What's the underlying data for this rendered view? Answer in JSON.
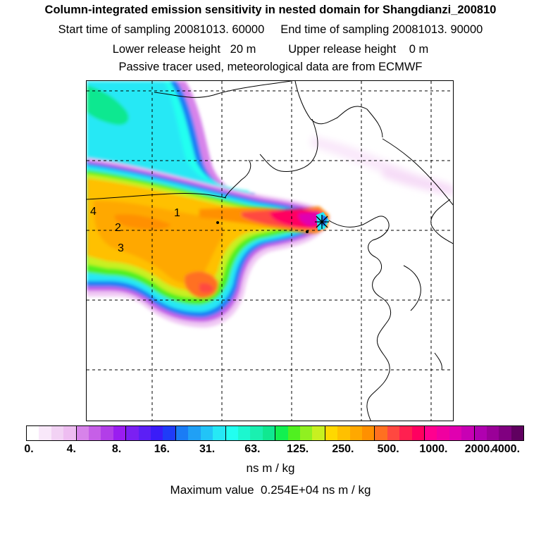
{
  "header": {
    "title": "Column-integrated emission sensitivity in nested domain for Shangdianzi_200810",
    "sampling_line": "Start time of sampling 20081013. 60000     End time of sampling 20081013. 90000",
    "release_line": "Lower release height   20 m          Upper release height    0 m",
    "tracer_line": "Passive tracer used, meteorological data are from ECMWF"
  },
  "map": {
    "site_marker": "asterisk-icon",
    "region_labels": [
      "1",
      "2",
      "3",
      "4"
    ]
  },
  "colorbar": {
    "tick_labels": [
      "0.",
      "4.",
      "8.",
      "16.",
      "31.",
      "63.",
      "125.",
      "250.",
      "500.",
      "1000.",
      "2000.",
      "4000."
    ],
    "colors": [
      "#ffffff",
      "#f9e8fa",
      "#f2d2f4",
      "#eebdf1",
      "#d783ea",
      "#c65fe7",
      "#b23ee8",
      "#9a1df0",
      "#7b20f2",
      "#5c1ff5",
      "#3a1cf8",
      "#1f3cf8",
      "#1a7cf5",
      "#20a0f5",
      "#22c4f7",
      "#26e8f5",
      "#22fff0",
      "#1cf7cf",
      "#1af0b0",
      "#10e890",
      "#12f050",
      "#50f020",
      "#90f020",
      "#c8f020",
      "#ffd800",
      "#ffc000",
      "#ffa800",
      "#ff9000",
      "#ff7020",
      "#ff4840",
      "#ff2050",
      "#ff0060",
      "#ff008f",
      "#f000a0",
      "#e000b0",
      "#c800b4",
      "#b000b0",
      "#9a0098",
      "#800080",
      "#600060"
    ]
  },
  "unit": "ns m / kg",
  "max_value_text": "Maximum value  0.254E+04 ns m / kg"
}
